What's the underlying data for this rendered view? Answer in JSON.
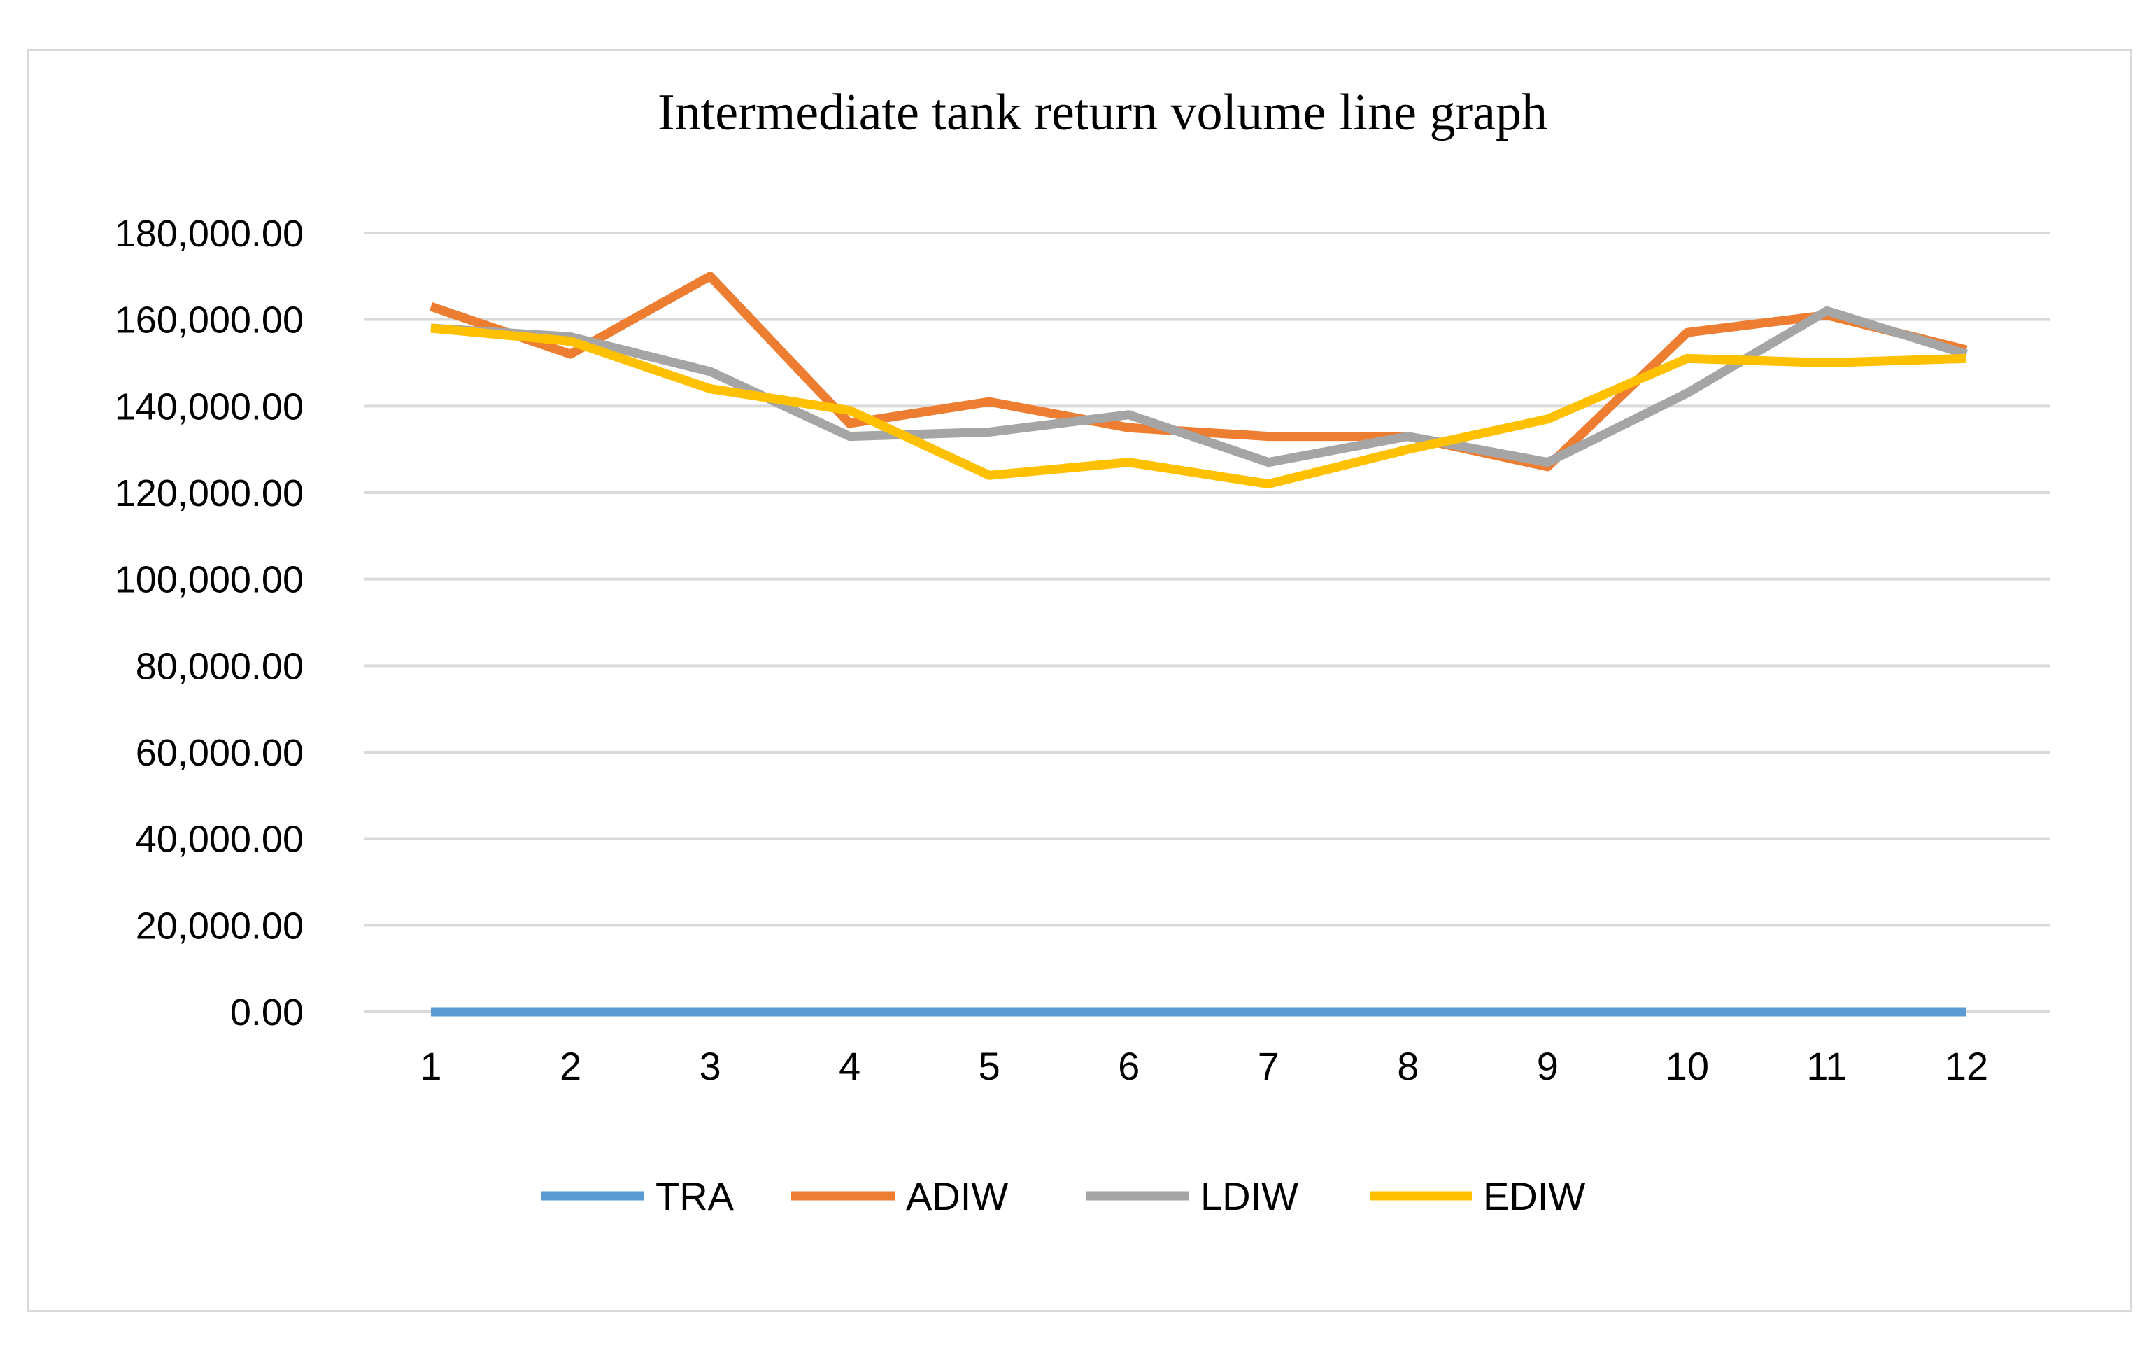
{
  "chart_data": {
    "type": "line",
    "title": "Intermediate tank return volume  line  graph",
    "xlabel": "",
    "ylabel": "",
    "categories": [
      "1",
      "2",
      "3",
      "4",
      "5",
      "6",
      "7",
      "8",
      "9",
      "10",
      "11",
      "12"
    ],
    "ylim": [
      0,
      180000
    ],
    "yticks": [
      0,
      20000,
      40000,
      60000,
      80000,
      100000,
      120000,
      140000,
      160000,
      180000
    ],
    "ytick_labels": [
      "0.00",
      "20,000.00",
      "40,000.00",
      "60,000.00",
      "80,000.00",
      "100,000.00",
      "120,000.00",
      "140,000.00",
      "160,000.00",
      "180,000.00"
    ],
    "grid": true,
    "legend_position": "bottom",
    "series": [
      {
        "name": "TRA",
        "color": "#5b9bd5",
        "values": [
          0,
          0,
          0,
          0,
          0,
          0,
          0,
          0,
          0,
          0,
          0,
          0
        ]
      },
      {
        "name": "ADIW",
        "color": "#ed7d31",
        "values": [
          163000,
          152000,
          170000,
          136000,
          141000,
          135000,
          133000,
          133000,
          126000,
          157000,
          161000,
          153000
        ]
      },
      {
        "name": "LDIW",
        "color": "#a5a5a5",
        "values": [
          158000,
          156000,
          148000,
          133000,
          134000,
          138000,
          127000,
          133000,
          127000,
          143000,
          162000,
          152000
        ]
      },
      {
        "name": "EDIW",
        "color": "#ffc000",
        "values": [
          158000,
          155000,
          144000,
          139000,
          124000,
          127000,
          122000,
          130000,
          137000,
          151000,
          150000,
          151000
        ]
      }
    ]
  }
}
